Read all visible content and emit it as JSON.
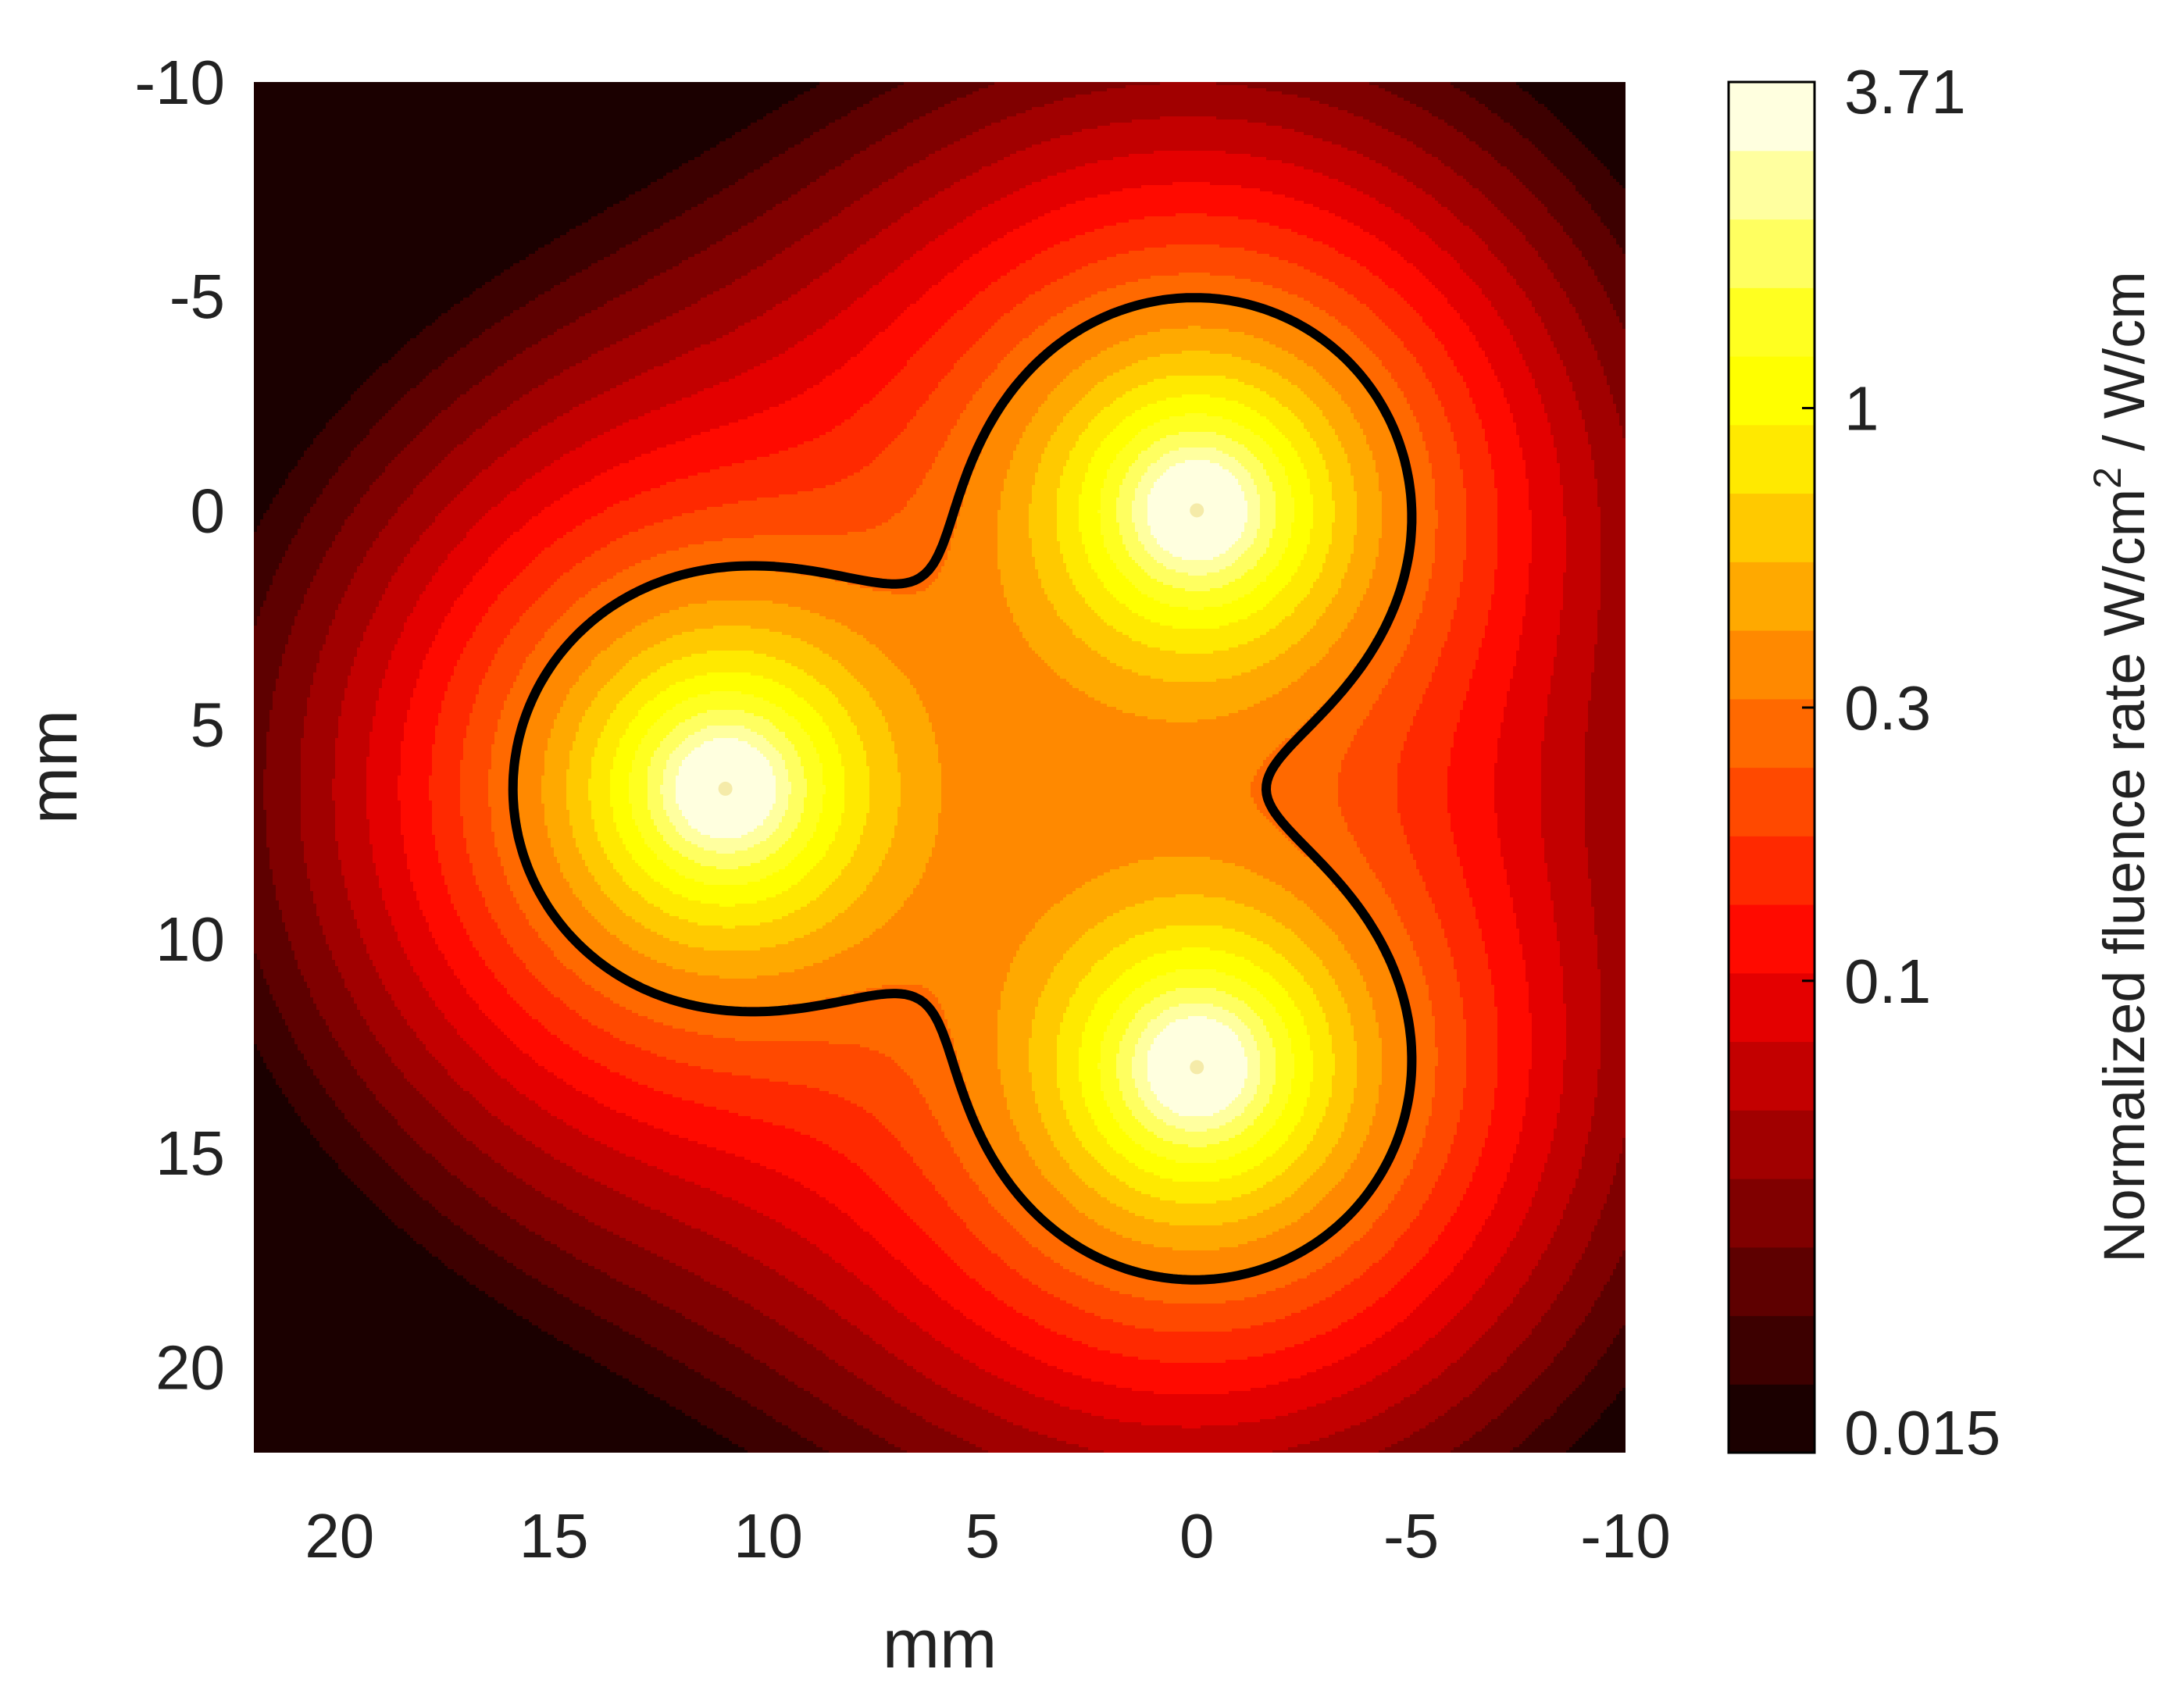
{
  "chart_data": {
    "type": "heatmap",
    "subtype": "filled-contour",
    "title": "",
    "xlabel": "mm",
    "ylabel": "mm",
    "xlim": [
      22,
      -10
    ],
    "ylim": [
      -10,
      22
    ],
    "x_reversed": true,
    "y_reversed": true,
    "xticks": [
      20,
      15,
      10,
      5,
      0,
      -5,
      -10
    ],
    "yticks": [
      -10,
      -5,
      0,
      5,
      10,
      15,
      20
    ],
    "sources": [
      {
        "x": 0,
        "y": 0
      },
      {
        "x": 11,
        "y": 6.5
      },
      {
        "x": 0,
        "y": 13
      }
    ],
    "contour_line": {
      "level": 0.3,
      "color": "#000000"
    },
    "colorbar": {
      "label_main": "Normalized fluence rate W/cm",
      "label_sup": "2",
      "label_end": " / W/cm",
      "scale": "log",
      "min": 0.015,
      "max": 3.71,
      "tick_labels": [
        "3.71",
        "1",
        "0.3",
        "0.1",
        "0.015"
      ],
      "tick_values": [
        3.71,
        1,
        0.3,
        0.1,
        0.015
      ],
      "colormap": "hot",
      "levels": 20
    },
    "grid": false,
    "legend": "none"
  }
}
